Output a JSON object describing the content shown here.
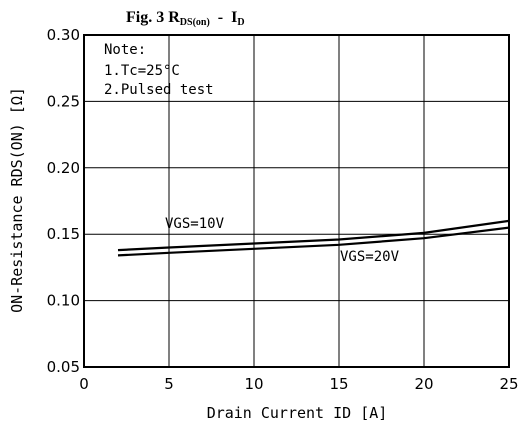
{
  "chart_data": {
    "type": "line",
    "title": {
      "prefix": "Fig. 3 R",
      "subscript": "DS(on)",
      "separator": "  -  I",
      "subscript2": "D"
    },
    "xlabel": "Drain Current ID [A]",
    "ylabel": "ON-Resistance RDS(ON) [Ω]",
    "xlim": [
      0,
      25
    ],
    "ylim": [
      0.05,
      0.3
    ],
    "x_ticks": [
      0,
      5,
      10,
      15,
      20,
      25
    ],
    "x_tick_labels": [
      "0",
      "5",
      "10",
      "15",
      "20",
      "25"
    ],
    "y_ticks": [
      0.05,
      0.1,
      0.15,
      0.2,
      0.25,
      0.3
    ],
    "y_tick_labels": [
      "0.05",
      "0.10",
      "0.15",
      "0.20",
      "0.25",
      "0.30"
    ],
    "grid": true,
    "notes": [
      "Note:",
      "1.Tc=25°C",
      "2.Pulsed test"
    ],
    "series": [
      {
        "name": "VGS=10V",
        "x": [
          2,
          5,
          10,
          15,
          20,
          25
        ],
        "values": [
          0.138,
          0.14,
          0.143,
          0.146,
          0.151,
          0.16
        ]
      },
      {
        "name": "VGS=20V",
        "x": [
          2,
          5,
          10,
          15,
          20,
          25
        ],
        "values": [
          0.134,
          0.136,
          0.139,
          0.142,
          0.147,
          0.155
        ]
      }
    ]
  }
}
